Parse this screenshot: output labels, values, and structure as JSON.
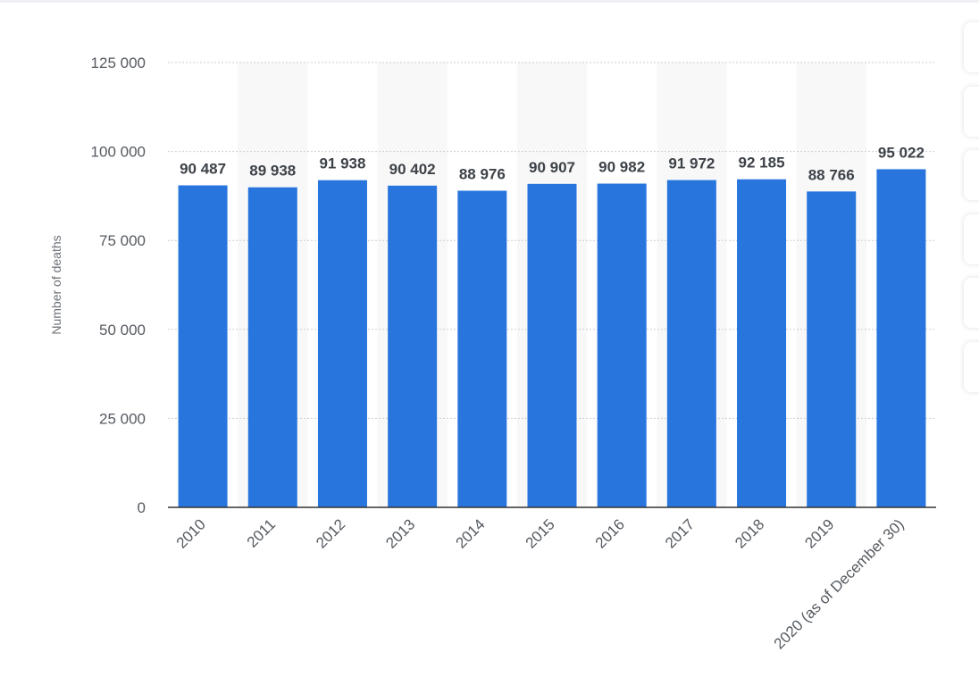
{
  "chart_data": {
    "type": "bar",
    "ylabel": "Number of deaths",
    "categories": [
      "2010",
      "2011",
      "2012",
      "2013",
      "2014",
      "2015",
      "2016",
      "2017",
      "2018",
      "2019",
      "2020 (as of December 30)"
    ],
    "values": [
      90487,
      89938,
      91938,
      90402,
      88976,
      90907,
      90982,
      91972,
      92185,
      88766,
      95022
    ],
    "value_labels": [
      "90 487",
      "89 938",
      "91 938",
      "90 402",
      "88 976",
      "90 907",
      "90 982",
      "91 972",
      "92 185",
      "88 766",
      "95 022"
    ],
    "ylim": [
      0,
      125000
    ],
    "yticks": [
      0,
      25000,
      50000,
      75000,
      100000,
      125000
    ],
    "ytick_labels": [
      "0",
      "25 000",
      "50 000",
      "75 000",
      "100 000",
      "125 000"
    ],
    "grid": true,
    "legend": "none",
    "bar_color": "#2876dd"
  },
  "toolbar": {
    "buttons": [
      "tool-button-1",
      "tool-button-2",
      "tool-button-3",
      "tool-button-4",
      "tool-button-5",
      "tool-button-6"
    ]
  }
}
